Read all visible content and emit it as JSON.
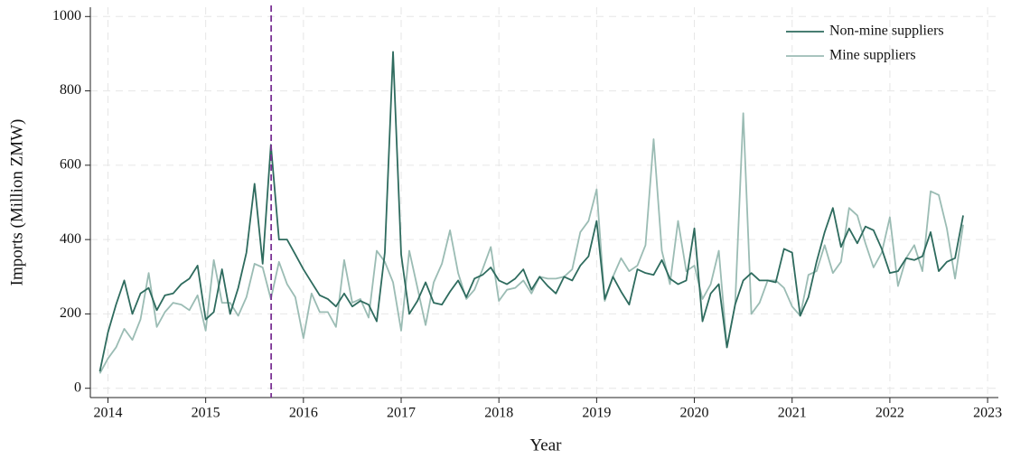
{
  "chart_data": {
    "type": "line",
    "xlabel": "Year",
    "ylabel": "Imports (Million ZMW)",
    "x": [
      2013.917,
      2014,
      2014.083,
      2014.167,
      2014.25,
      2014.333,
      2014.417,
      2014.5,
      2014.583,
      2014.667,
      2014.75,
      2014.833,
      2014.917,
      2015,
      2015.083,
      2015.167,
      2015.25,
      2015.333,
      2015.417,
      2015.5,
      2015.583,
      2015.667,
      2015.75,
      2015.833,
      2015.917,
      2016,
      2016.083,
      2016.167,
      2016.25,
      2016.333,
      2016.417,
      2016.5,
      2016.583,
      2016.667,
      2016.75,
      2016.833,
      2016.917,
      2017,
      2017.083,
      2017.167,
      2017.25,
      2017.333,
      2017.417,
      2017.5,
      2017.583,
      2017.667,
      2017.75,
      2017.833,
      2017.917,
      2018,
      2018.083,
      2018.167,
      2018.25,
      2018.333,
      2018.417,
      2018.5,
      2018.583,
      2018.667,
      2018.75,
      2018.833,
      2018.917,
      2019,
      2019.083,
      2019.167,
      2019.25,
      2019.333,
      2019.417,
      2019.5,
      2019.583,
      2019.667,
      2019.75,
      2019.833,
      2019.917,
      2020,
      2020.083,
      2020.167,
      2020.25,
      2020.333,
      2020.417,
      2020.5,
      2020.583,
      2020.667,
      2020.75,
      2020.833,
      2020.917,
      2021,
      2021.083,
      2021.167,
      2021.25,
      2021.333,
      2021.417,
      2021.5,
      2021.583,
      2021.667,
      2021.75,
      2021.833,
      2021.917,
      2022,
      2022.083,
      2022.167,
      2022.25,
      2022.333,
      2022.417,
      2022.5,
      2022.583,
      2022.667,
      2022.75
    ],
    "series": [
      {
        "name": "Non-mine suppliers",
        "color": "#2e6b5e",
        "values": [
          45,
          150,
          225,
          290,
          200,
          255,
          270,
          210,
          250,
          255,
          280,
          295,
          330,
          185,
          205,
          320,
          200,
          270,
          365,
          550,
          335,
          655,
          400,
          400,
          360,
          320,
          285,
          250,
          240,
          220,
          255,
          220,
          235,
          225,
          180,
          365,
          905,
          360,
          200,
          235,
          285,
          230,
          225,
          260,
          290,
          245,
          295,
          305,
          325,
          290,
          280,
          295,
          320,
          265,
          300,
          275,
          255,
          300,
          290,
          330,
          355,
          450,
          240,
          300,
          260,
          225,
          320,
          310,
          305,
          345,
          295,
          280,
          290,
          430,
          180,
          255,
          280,
          110,
          225,
          290,
          310,
          290,
          290,
          285,
          375,
          365,
          195,
          245,
          340,
          420,
          485,
          380,
          430,
          390,
          435,
          425,
          375,
          310,
          315,
          350,
          345,
          355,
          420,
          315,
          340,
          350,
          465
        ]
      },
      {
        "name": "Mine suppliers",
        "color": "#9bbcb4",
        "values": [
          40,
          80,
          110,
          160,
          130,
          185,
          310,
          165,
          205,
          230,
          225,
          210,
          250,
          155,
          345,
          230,
          230,
          195,
          245,
          335,
          325,
          240,
          340,
          280,
          245,
          135,
          255,
          205,
          205,
          165,
          345,
          230,
          240,
          190,
          370,
          340,
          285,
          155,
          370,
          270,
          170,
          285,
          335,
          425,
          310,
          240,
          265,
          320,
          380,
          235,
          265,
          270,
          290,
          255,
          300,
          295,
          295,
          300,
          320,
          420,
          450,
          535,
          235,
          300,
          350,
          315,
          330,
          385,
          670,
          370,
          280,
          450,
          315,
          330,
          240,
          280,
          370,
          110,
          225,
          740,
          200,
          230,
          290,
          290,
          270,
          220,
          195,
          305,
          315,
          385,
          310,
          340,
          485,
          465,
          390,
          325,
          365,
          460,
          275,
          350,
          385,
          315,
          530,
          520,
          430,
          295,
          440
        ]
      }
    ],
    "vline": {
      "x": 2015.67,
      "color": "#7b3294"
    },
    "xlim": [
      2013.82,
      2023.11
    ],
    "xticks": [
      2014,
      2015,
      2016,
      2017,
      2018,
      2019,
      2020,
      2021,
      2022,
      2023
    ],
    "ylim": [
      -25,
      1025
    ],
    "yticks": [
      0,
      200,
      400,
      600,
      800,
      1000
    ],
    "grid": true,
    "legend": "upper right"
  }
}
